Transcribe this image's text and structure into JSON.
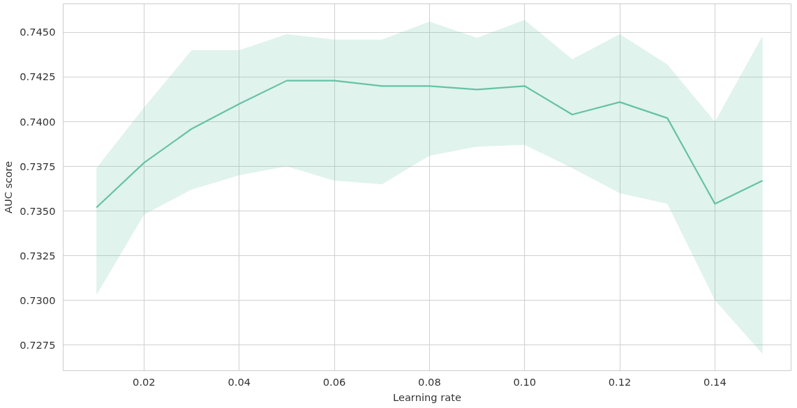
{
  "chart_data": {
    "type": "line",
    "xlabel": "Learning rate",
    "ylabel": "AUC score",
    "x": [
      0.01,
      0.02,
      0.03,
      0.04,
      0.05,
      0.06,
      0.07,
      0.08,
      0.09,
      0.1,
      0.11,
      0.12,
      0.13,
      0.14,
      0.15
    ],
    "series": [
      {
        "color": "#66c2a5",
        "values": [
          0.7352,
          0.7377,
          0.7396,
          0.741,
          0.7423,
          0.7423,
          0.742,
          0.742,
          0.7418,
          0.742,
          0.7404,
          0.7411,
          0.7402,
          0.7354,
          0.7367
        ],
        "lower": [
          0.7303,
          0.7348,
          0.7362,
          0.737,
          0.7375,
          0.7367,
          0.7365,
          0.7381,
          0.7386,
          0.7387,
          0.7374,
          0.736,
          0.7354,
          0.73,
          0.727
        ],
        "upper": [
          0.7374,
          0.7408,
          0.744,
          0.744,
          0.7449,
          0.7446,
          0.7446,
          0.7456,
          0.7447,
          0.7457,
          0.7435,
          0.7449,
          0.7432,
          0.74,
          0.7448
        ]
      }
    ],
    "xlim": [
      0.003,
      0.156
    ],
    "ylim": [
      0.72606,
      0.7466
    ],
    "xticks": [
      {
        "value": 0.02,
        "label": "0.02"
      },
      {
        "value": 0.04,
        "label": "0.04"
      },
      {
        "value": 0.06,
        "label": "0.06"
      },
      {
        "value": 0.08,
        "label": "0.08"
      },
      {
        "value": 0.1,
        "label": "0.10"
      },
      {
        "value": 0.12,
        "label": "0.12"
      },
      {
        "value": 0.14,
        "label": "0.14"
      }
    ],
    "yticks": [
      {
        "value": 0.7275,
        "label": "0.7275"
      },
      {
        "value": 0.73,
        "label": "0.7300"
      },
      {
        "value": 0.7325,
        "label": "0.7325"
      },
      {
        "value": 0.735,
        "label": "0.7350"
      },
      {
        "value": 0.7375,
        "label": "0.7375"
      },
      {
        "value": 0.74,
        "label": "0.7400"
      },
      {
        "value": 0.7425,
        "label": "0.7425"
      },
      {
        "value": 0.745,
        "label": "0.7450"
      }
    ],
    "grid": true,
    "marker": "none",
    "line_style": "solid"
  }
}
